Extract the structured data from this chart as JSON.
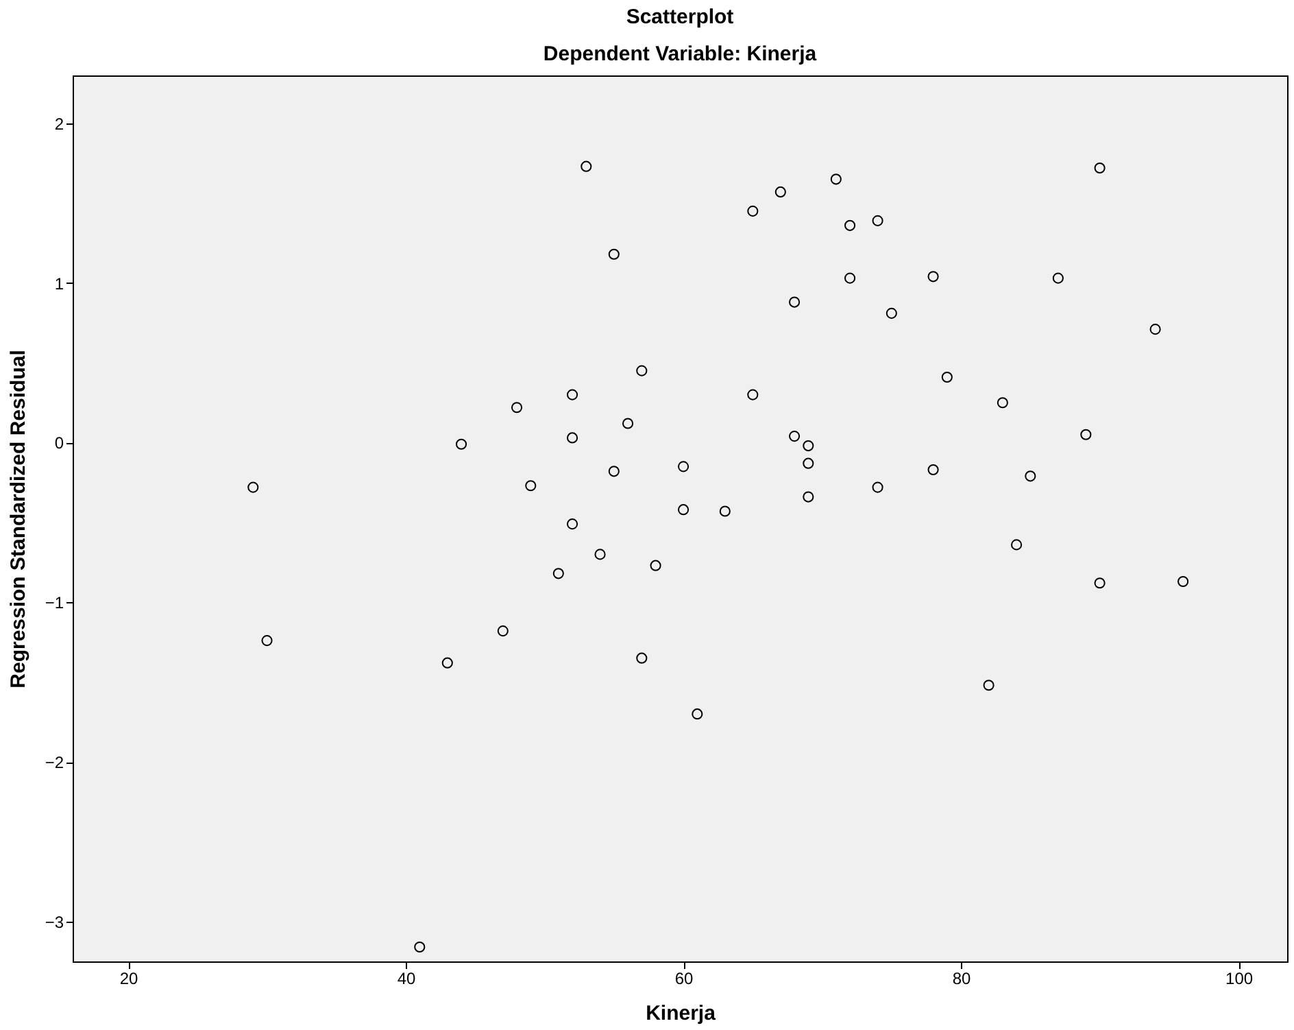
{
  "chart_data": {
    "type": "scatter",
    "title": "Scatterplot",
    "subtitle": "Dependent Variable: Kinerja",
    "xlabel": "Kinerja",
    "ylabel": "Regression Standardized Residual",
    "x": [
      29,
      30,
      41,
      43,
      44,
      47,
      48,
      49,
      51,
      52,
      52,
      52,
      53,
      54,
      55,
      55,
      56,
      57,
      57,
      58,
      60,
      60,
      61,
      63,
      65,
      65,
      67,
      68,
      68,
      69,
      69,
      69,
      71,
      72,
      72,
      74,
      74,
      75,
      78,
      78,
      79,
      83,
      84,
      85,
      82,
      87,
      89,
      90,
      90,
      94,
      96
    ],
    "values": [
      -0.28,
      -1.24,
      -3.16,
      -1.38,
      -0.01,
      -1.18,
      0.22,
      -0.27,
      -0.82,
      0.3,
      0.03,
      -0.51,
      1.73,
      -0.7,
      1.18,
      -0.18,
      0.12,
      0.45,
      -1.35,
      -0.77,
      -0.15,
      -0.42,
      -1.7,
      -0.43,
      1.45,
      0.3,
      1.57,
      0.88,
      0.04,
      -0.02,
      -0.13,
      -0.34,
      1.65,
      1.36,
      1.03,
      1.39,
      -0.28,
      0.81,
      1.04,
      -0.17,
      0.41,
      0.25,
      -0.64,
      -0.21,
      -1.52,
      1.03,
      0.05,
      1.72,
      -0.88,
      0.71,
      -0.87
    ],
    "color": "#000000",
    "marker": "circle",
    "grid": false,
    "xlim": [
      16,
      103.5
    ],
    "xticks": [
      20,
      40,
      60,
      80,
      100
    ],
    "ylim": [
      -3.25,
      2.3
    ],
    "yticks": [
      -3,
      -2,
      -1,
      0,
      1,
      2
    ]
  }
}
